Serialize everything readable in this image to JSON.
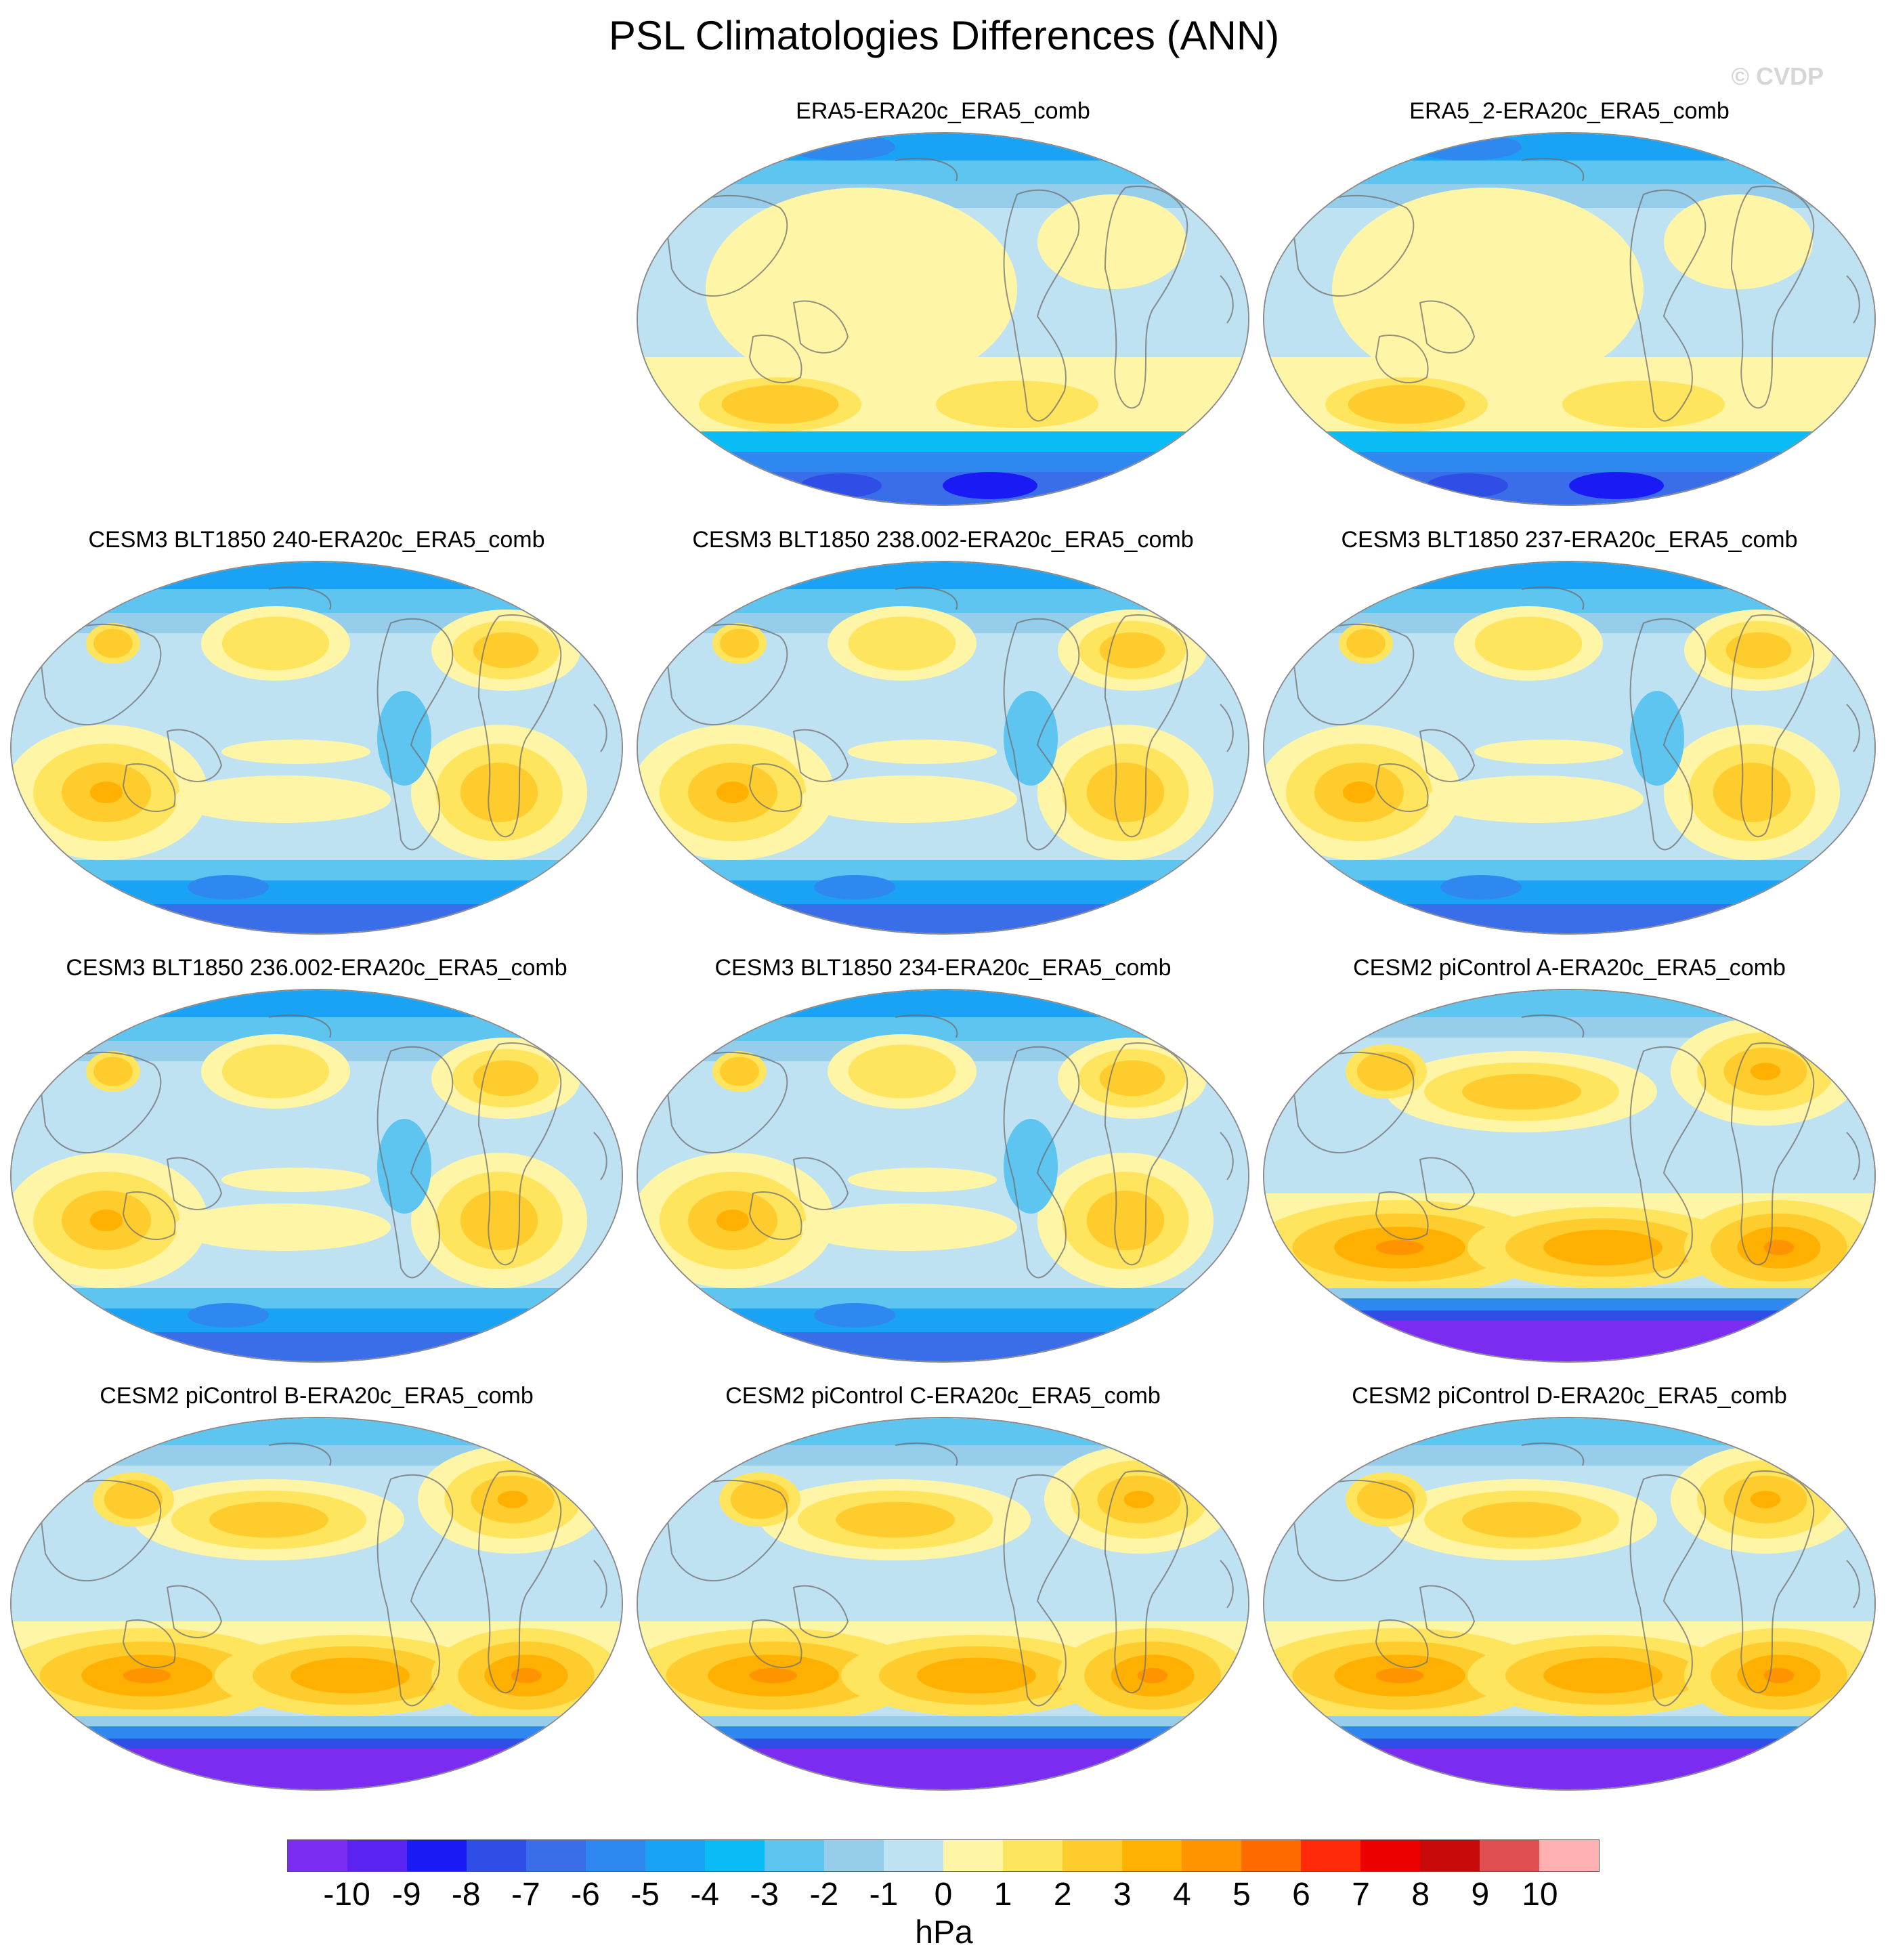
{
  "title": "PSL Climatologies Differences (ANN)",
  "watermark": "© CVDP",
  "panels": [
    {
      "label": "ERA5-ERA20c_ERA5_comb",
      "pattern": "reanalysis"
    },
    {
      "label": "ERA5_2-ERA20c_ERA5_comb",
      "pattern": "reanalysis"
    },
    {
      "label": "CESM3 BLT1850 240-ERA20c_ERA5_comb",
      "pattern": "cesm3"
    },
    {
      "label": "CESM3 BLT1850 238.002-ERA20c_ERA5_comb",
      "pattern": "cesm3"
    },
    {
      "label": "CESM3 BLT1850 237-ERA20c_ERA5_comb",
      "pattern": "cesm3"
    },
    {
      "label": "CESM3 BLT1850 236.002-ERA20c_ERA5_comb",
      "pattern": "cesm3"
    },
    {
      "label": "CESM3 BLT1850 234-ERA20c_ERA5_comb",
      "pattern": "cesm3"
    },
    {
      "label": "CESM2 piControl A-ERA20c_ERA5_comb",
      "pattern": "cesm2"
    },
    {
      "label": "CESM2 piControl B-ERA20c_ERA5_comb",
      "pattern": "cesm2"
    },
    {
      "label": "CESM2 piControl C-ERA20c_ERA5_comb",
      "pattern": "cesm2"
    },
    {
      "label": "CESM2 piControl D-ERA20c_ERA5_comb",
      "pattern": "cesm2"
    }
  ],
  "colorbar": {
    "colors": [
      "#7b2cf0",
      "#5a23f0",
      "#1a1af5",
      "#2e4ee6",
      "#3a6ee8",
      "#2f88f0",
      "#1aa3f5",
      "#0abcf5",
      "#5ec4f0",
      "#95cdeb",
      "#bfe2f3",
      "#fff5a6",
      "#ffe45e",
      "#ffcc2e",
      "#ffb000",
      "#ff9400",
      "#ff6a00",
      "#ff2a0a",
      "#ec0000",
      "#c80a0a",
      "#e05050",
      "#ffb0b0"
    ],
    "ticks": [
      "-10",
      "-9",
      "-8",
      "-7",
      "-6",
      "-5",
      "-4",
      "-3",
      "-2",
      "-1",
      "0",
      "1",
      "2",
      "3",
      "4",
      "5",
      "6",
      "7",
      "8",
      "9",
      "10"
    ],
    "unit": "hPa"
  }
}
